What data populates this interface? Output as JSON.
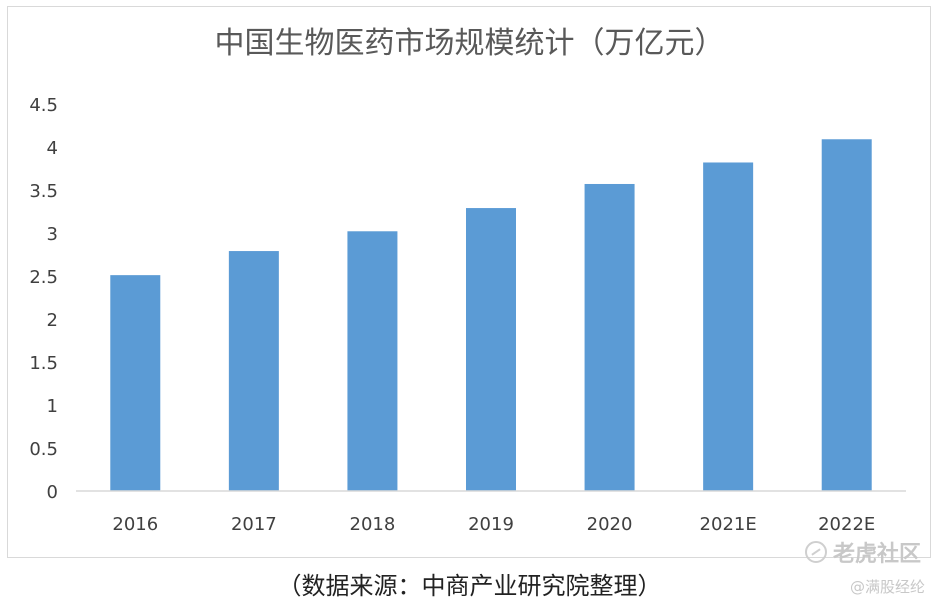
{
  "chart_data": {
    "type": "bar",
    "title": "中国生物医药市场规模统计（万亿元）",
    "categories": [
      "2016",
      "2017",
      "2018",
      "2019",
      "2020",
      "2021E",
      "2022E"
    ],
    "values": [
      2.51,
      2.79,
      3.02,
      3.29,
      3.57,
      3.82,
      4.09
    ],
    "ylim": [
      0,
      4.5
    ],
    "yticks": [
      "0",
      "0.5",
      "1",
      "1.5",
      "2",
      "2.5",
      "3",
      "3.5",
      "4",
      "4.5"
    ],
    "bar_color": "#5b9bd5",
    "grid": false,
    "legend": "none"
  },
  "source_note": "（数据来源：中商产业研究院整理）",
  "watermark": {
    "main": "老虎社区",
    "sub": "@满股经纶"
  }
}
